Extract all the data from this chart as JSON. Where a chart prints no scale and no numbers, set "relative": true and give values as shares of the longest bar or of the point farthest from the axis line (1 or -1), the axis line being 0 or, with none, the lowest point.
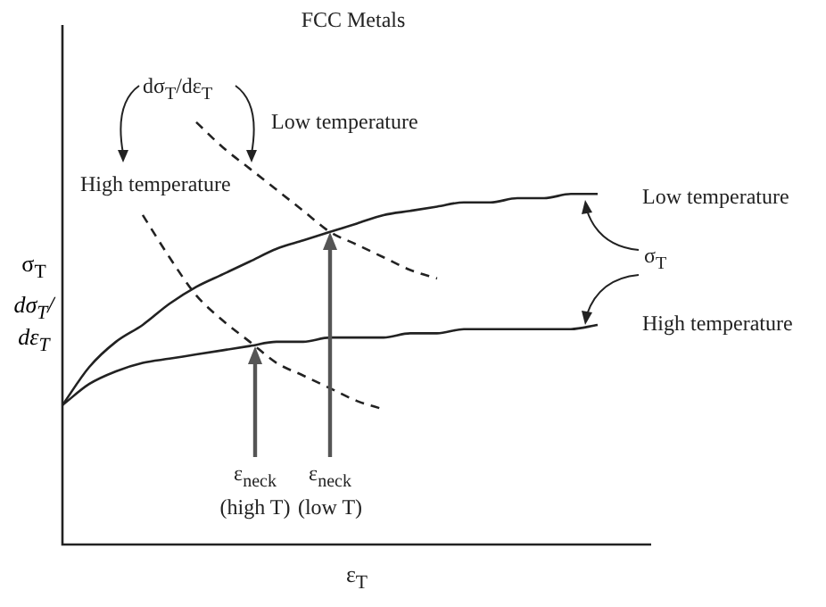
{
  "chart_data": {
    "type": "line",
    "title": "FCC Metals",
    "xlabel": "ε$_{T}$",
    "ylabel": "σ$_{T}$\ndσ$_{T}$/dε$_{T}$",
    "relative": true,
    "marker": "none",
    "legend": "right",
    "grid": false,
    "tick_labels": false,
    "categories": [
      null,
      null,
      null,
      null,
      null,
      null,
      null,
      null,
      null,
      null,
      null,
      null,
      null,
      null,
      null,
      null,
      null,
      null,
      null,
      null,
      null,
      null,
      null
    ],
    "series": [
      {
        "name": "Low temperature",
        "color": "#222222",
        "line_style": "solid",
        "values": [
          0.33,
          0.42,
          0.48,
          0.52,
          0.57,
          0.61,
          0.64,
          0.67,
          0.7,
          0.72,
          0.74,
          0.76,
          0.78,
          0.79,
          0.8,
          0.81,
          0.81,
          0.82,
          0.82,
          0.83,
          0.83,
          null,
          null
        ]
      },
      {
        "name": "High temperature",
        "color": "#222222",
        "line_style": "solid",
        "values": [
          0.33,
          0.38,
          0.41,
          0.43,
          0.44,
          0.45,
          0.46,
          0.47,
          0.48,
          0.48,
          0.49,
          0.49,
          0.49,
          0.5,
          0.5,
          0.51,
          0.51,
          0.51,
          0.51,
          0.51,
          0.52,
          null,
          null
        ]
      },
      {
        "name": "High temperature",
        "color": "#222222",
        "line_style": "dashed",
        "values": [
          null,
          null,
          null,
          0.78,
          0.68,
          0.59,
          0.53,
          0.48,
          0.43,
          0.4,
          0.37,
          0.34,
          0.32,
          null,
          null,
          null,
          null,
          null,
          null,
          null,
          null,
          null,
          null
        ]
      },
      {
        "name": "Low temperature",
        "color": "#222222",
        "line_style": "dashed",
        "values": [
          null,
          null,
          null,
          null,
          null,
          1,
          0.94,
          0.89,
          0.84,
          0.79,
          0.74,
          0.71,
          0.68,
          0.65,
          0.63,
          null,
          null,
          null,
          null,
          null,
          null,
          null,
          null
        ]
      }
    ],
    "annotations": [
      "dσ$_{T}$/dε$_{T}$",
      "σ$_{T}$",
      "ε$_{neck}$\n(high T)",
      "ε$_{neck}$\n(low T)"
    ]
  }
}
